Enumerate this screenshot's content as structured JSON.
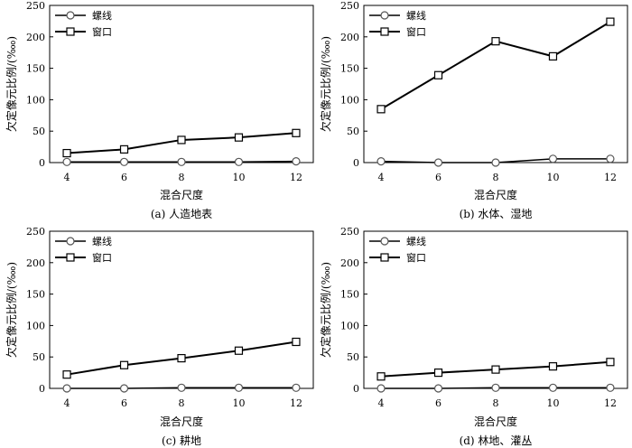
{
  "chart_data": [
    {
      "type": "line",
      "caption": "(a) 人造地表",
      "xlabel": "混合尺度",
      "ylabel": "欠定像元比例/(‱)",
      "x": [
        4,
        6,
        8,
        10,
        12
      ],
      "xlim": [
        3.4,
        12.6
      ],
      "ylim": [
        0,
        250
      ],
      "yticks": [
        0,
        50,
        100,
        150,
        200,
        250
      ],
      "legend_position": "top-left",
      "series": [
        {
          "name": "螺线",
          "marker": "circle",
          "values": [
            1,
            1,
            1,
            1,
            2
          ]
        },
        {
          "name": "窗口",
          "marker": "square",
          "values": [
            15,
            21,
            36,
            40,
            47
          ]
        }
      ]
    },
    {
      "type": "line",
      "caption": "(b) 水体、湿地",
      "xlabel": "混合尺度",
      "ylabel": "欠定像元比例/(‱)",
      "x": [
        4,
        6,
        8,
        10,
        12
      ],
      "xlim": [
        3.4,
        12.6
      ],
      "ylim": [
        0,
        250
      ],
      "yticks": [
        0,
        50,
        100,
        150,
        200,
        250
      ],
      "legend_position": "top-left",
      "series": [
        {
          "name": "螺线",
          "marker": "circle",
          "values": [
            2,
            0,
            0,
            6,
            6
          ]
        },
        {
          "name": "窗口",
          "marker": "square",
          "values": [
            85,
            139,
            193,
            169,
            224
          ]
        }
      ]
    },
    {
      "type": "line",
      "caption": "(c) 耕地",
      "xlabel": "混合尺度",
      "ylabel": "欠定像元比例/(‱)",
      "x": [
        4,
        6,
        8,
        10,
        12
      ],
      "xlim": [
        3.4,
        12.6
      ],
      "ylim": [
        0,
        250
      ],
      "yticks": [
        0,
        50,
        100,
        150,
        200,
        250
      ],
      "legend_position": "top-left",
      "series": [
        {
          "name": "螺线",
          "marker": "circle",
          "values": [
            0,
            0,
            1,
            1,
            1
          ]
        },
        {
          "name": "窗口",
          "marker": "square",
          "values": [
            22,
            37,
            48,
            60,
            74
          ]
        }
      ]
    },
    {
      "type": "line",
      "caption": "(d) 林地、灌丛",
      "xlabel": "混合尺度",
      "ylabel": "欠定像元比例/(‱)",
      "x": [
        4,
        6,
        8,
        10,
        12
      ],
      "xlim": [
        3.4,
        12.6
      ],
      "ylim": [
        0,
        250
      ],
      "yticks": [
        0,
        50,
        100,
        150,
        200,
        250
      ],
      "legend_position": "top-left",
      "series": [
        {
          "name": "螺线",
          "marker": "circle",
          "values": [
            0,
            0,
            1,
            1,
            1
          ]
        },
        {
          "name": "窗口",
          "marker": "square",
          "values": [
            19,
            25,
            30,
            35,
            42
          ]
        }
      ]
    }
  ]
}
